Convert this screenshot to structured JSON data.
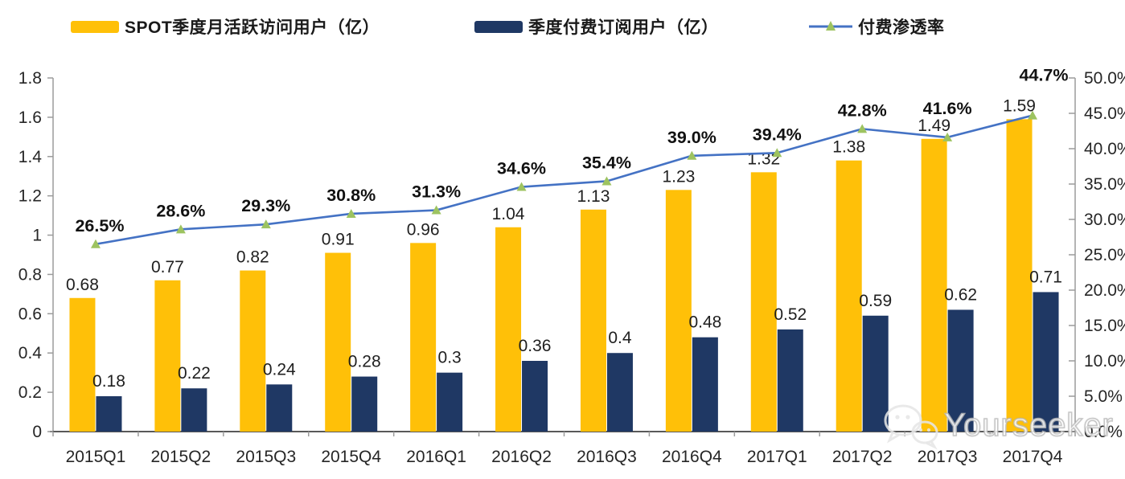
{
  "chart_data": {
    "type": "combo-bar-line",
    "title": "",
    "categories": [
      "2015Q1",
      "2015Q2",
      "2015Q3",
      "2015Q4",
      "2016Q1",
      "2016Q2",
      "2016Q3",
      "2016Q4",
      "2017Q1",
      "2017Q2",
      "2017Q3",
      "2017Q4"
    ],
    "series": [
      {
        "key": "mau",
        "name": "SPOT季度月活跃访问用户（亿）",
        "type": "bar",
        "color": "#FFC008",
        "axis": "left",
        "values": [
          0.68,
          0.77,
          0.82,
          0.91,
          0.96,
          1.04,
          1.13,
          1.23,
          1.32,
          1.38,
          1.49,
          1.59
        ],
        "labels": [
          "0.68",
          "0.77",
          "0.82",
          "0.91",
          "0.96",
          "1.04",
          "1.13",
          "1.23",
          "1.32",
          "1.38",
          "1.49",
          "1.59"
        ]
      },
      {
        "key": "paid-subs",
        "name": "季度付费订阅用户（亿）",
        "type": "bar",
        "color": "#1F3864",
        "axis": "left",
        "values": [
          0.18,
          0.22,
          0.24,
          0.28,
          0.3,
          0.36,
          0.4,
          0.48,
          0.52,
          0.59,
          0.62,
          0.71
        ],
        "labels": [
          "0.18",
          "0.22",
          "0.24",
          "0.28",
          "0.3",
          "0.36",
          "0.4",
          "0.48",
          "0.52",
          "0.59",
          "0.62",
          "0.71"
        ]
      },
      {
        "key": "penetration",
        "name": "付费渗透率",
        "type": "line",
        "color": "#4472C4",
        "marker": "triangle",
        "marker_color": "#9DC360",
        "axis": "right",
        "values": [
          26.5,
          28.6,
          29.3,
          30.8,
          31.3,
          34.6,
          35.4,
          39.0,
          39.4,
          42.8,
          41.6,
          44.7
        ],
        "labels": [
          "26.5%",
          "28.6%",
          "29.3%",
          "30.8%",
          "31.3%",
          "34.6%",
          "35.4%",
          "39.0%",
          "39.4%",
          "42.8%",
          "41.6%",
          "44.7%"
        ]
      }
    ],
    "left_axis": {
      "min": 0,
      "max": 1.8,
      "tick_labels": [
        "0",
        "0.2",
        "0.4",
        "0.6",
        "0.8",
        "1",
        "1.2",
        "1.4",
        "1.6",
        "1.8"
      ]
    },
    "right_axis": {
      "min": 0,
      "max": 50,
      "tick_labels": [
        "0.0%",
        "5.0%",
        "10.0%",
        "15.0%",
        "20.0%",
        "25.0%",
        "30.0%",
        "35.0%",
        "40.0%",
        "45.0%",
        "50.0%"
      ]
    },
    "legend_position": "top",
    "grid": false,
    "text_color": "#262626",
    "axis_line_color": "#9b9b9b",
    "baseline_color": "#595959"
  },
  "watermark": {
    "text": "Yourseeker",
    "icon": "wechat-icon"
  }
}
